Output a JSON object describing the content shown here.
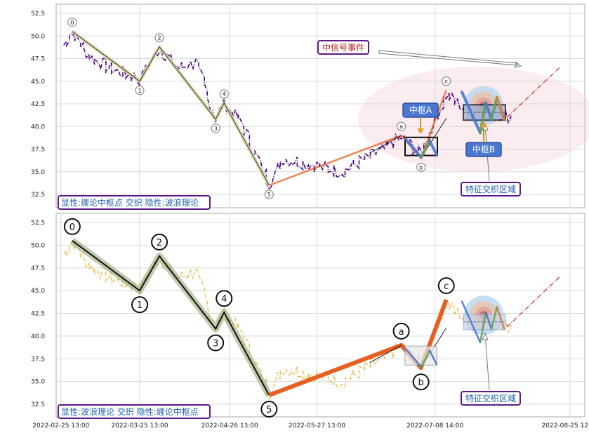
{
  "chart_data": [
    {
      "type": "line",
      "panel": "top",
      "ylim": [
        31.0,
        53.5
      ],
      "yticks": [
        "32.5",
        "35.0",
        "37.5",
        "40.0",
        "42.5",
        "45.0",
        "47.5",
        "50.0",
        "52.5"
      ],
      "xticks": [
        "2022-02-25 13:00",
        "2022-03-25 13:00",
        "2022-04-26 13:00",
        "2022-05-27 13:00",
        "2022-07-08 14:00",
        "2022-08-25 12:00"
      ],
      "legend": "显性:缠论中枢点 交织 隐性:波浪理论",
      "annotations": {
        "signal": "中信号事件",
        "zhongshu_a": "中枢A",
        "zhongshu_b": "中枢B",
        "feature_zone": "特征交织区域"
      },
      "wave_points": [
        {
          "label": "0",
          "x": "2022-03-01",
          "y": 50.5
        },
        {
          "label": "1",
          "x": "2022-03-25",
          "y": 45.0
        },
        {
          "label": "2",
          "x": "2022-04-01",
          "y": 48.8
        },
        {
          "label": "3",
          "x": "2022-04-21",
          "y": 40.8
        },
        {
          "label": "4",
          "x": "2022-04-24",
          "y": 42.6
        },
        {
          "label": "5",
          "x": "2022-05-10",
          "y": 33.5
        },
        {
          "label": "a",
          "x": "2022-06-26",
          "y": 39.0
        },
        {
          "label": "b",
          "x": "2022-07-03",
          "y": 36.5
        },
        {
          "label": "c",
          "x": "2022-07-12",
          "y": 44.0
        }
      ]
    },
    {
      "type": "line",
      "panel": "bottom",
      "ylim": [
        31.0,
        53.5
      ],
      "yticks": [
        "32.5",
        "35.0",
        "37.5",
        "40.0",
        "42.5",
        "45.0",
        "47.5",
        "50.0",
        "52.5"
      ],
      "legend": "显性:波浪理论 交织 隐性:缠论中枢点",
      "annotations": {
        "feature_zone": "特征交织区域"
      },
      "wave_points": [
        {
          "label": "0",
          "x": "2022-03-01",
          "y": 50.5
        },
        {
          "label": "1",
          "x": "2022-03-25",
          "y": 45.0
        },
        {
          "label": "2",
          "x": "2022-04-01",
          "y": 48.8
        },
        {
          "label": "3",
          "x": "2022-04-21",
          "y": 40.8
        },
        {
          "label": "4",
          "x": "2022-04-24",
          "y": 42.6
        },
        {
          "label": "5",
          "x": "2022-05-10",
          "y": 33.5
        },
        {
          "label": "a",
          "x": "2022-06-26",
          "y": 39.0
        },
        {
          "label": "b",
          "x": "2022-07-03",
          "y": 36.5
        },
        {
          "label": "c",
          "x": "2022-07-12",
          "y": 44.0
        }
      ]
    }
  ],
  "colors": {
    "price_top": "#4b0082",
    "price_bottom": "#e8b030",
    "wave_top": "#d8d8a8",
    "wave_bottom": "#9aa878",
    "abc_line": "#e86020",
    "signal_text": "#c02020",
    "box_blue": "#4a78d0",
    "legend_border": "#5a1a8a",
    "legend_text": "#2060b0"
  }
}
